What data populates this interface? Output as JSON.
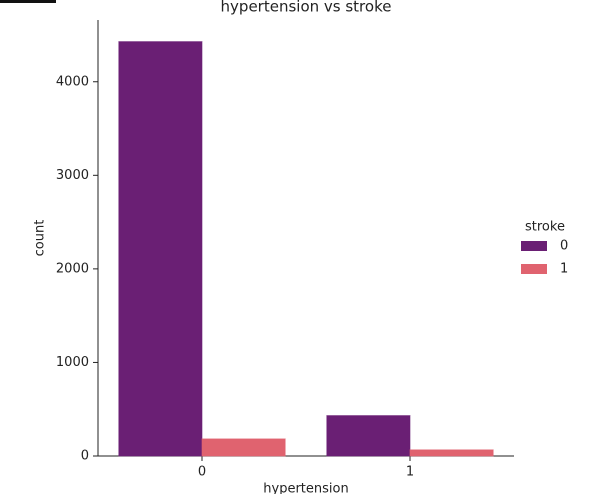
{
  "chart_data": {
    "type": "bar",
    "title": "hypertension vs stroke",
    "xlabel": "hypertension",
    "ylabel": "count",
    "categories": [
      "0",
      "1"
    ],
    "legend_title": "stroke",
    "legend": "right",
    "series": [
      {
        "name": "0",
        "color": "#6a1f74",
        "values": [
          4429,
          432
        ]
      },
      {
        "name": "1",
        "color": "#e0636f",
        "values": [
          183,
          66
        ]
      }
    ],
    "ylim": [
      0,
      4660
    ],
    "yticks": [
      0,
      1000,
      2000,
      3000,
      4000
    ],
    "grid": false
  }
}
